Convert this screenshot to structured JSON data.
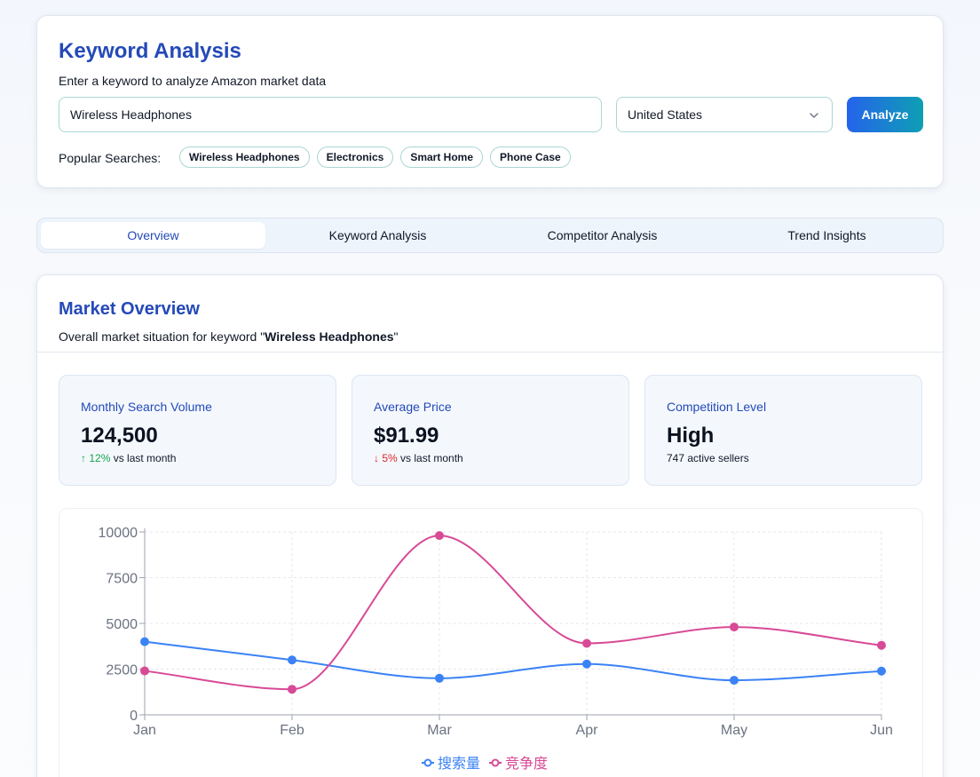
{
  "search": {
    "title": "Keyword Analysis",
    "subtitle": "Enter a keyword to analyze Amazon market data",
    "keyword_value": "Wireless Headphones",
    "country_selected": "United States",
    "analyze_label": "Analyze",
    "popular_label": "Popular Searches:",
    "popular": [
      "Wireless Headphones",
      "Electronics",
      "Smart Home",
      "Phone Case"
    ]
  },
  "tabs": [
    "Overview",
    "Keyword Analysis",
    "Competitor Analysis",
    "Trend Insights"
  ],
  "active_tab": "Overview",
  "overview": {
    "title": "Market Overview",
    "subtitle_prefix": "Overall market situation for keyword \"",
    "subtitle_keyword": "Wireless Headphones",
    "subtitle_suffix": "\"",
    "metrics": [
      {
        "label": "Monthly Search Volume",
        "value": "124,500",
        "change_arrow": "↑",
        "change": "12%",
        "change_suffix": " vs last month",
        "direction": "up"
      },
      {
        "label": "Average Price",
        "value": "$91.99",
        "change_arrow": "↓",
        "change": "5%",
        "change_suffix": " vs last month",
        "direction": "down"
      },
      {
        "label": "Competition Level",
        "value": "High",
        "footer": "747 active sellers"
      }
    ]
  },
  "colors": {
    "accent": "#2449b8",
    "series_search": "#3b82f6",
    "series_competition": "#d84a96",
    "up": "#16a34a",
    "down": "#dc2626"
  },
  "chart_data": {
    "type": "line",
    "categories": [
      "Jan",
      "Feb",
      "Mar",
      "Apr",
      "May",
      "Jun"
    ],
    "series": [
      {
        "name": "搜索量",
        "values": [
          4000,
          3000,
          2000,
          2780,
          1890,
          2390
        ]
      },
      {
        "name": "竞争度",
        "values": [
          2400,
          1398,
          9800,
          3908,
          4800,
          3800
        ]
      }
    ],
    "ylim": [
      0,
      10000
    ],
    "yticks": [
      0,
      2500,
      5000,
      7500,
      10000
    ],
    "grid": true,
    "legend": "bottom",
    "smooth": true
  }
}
